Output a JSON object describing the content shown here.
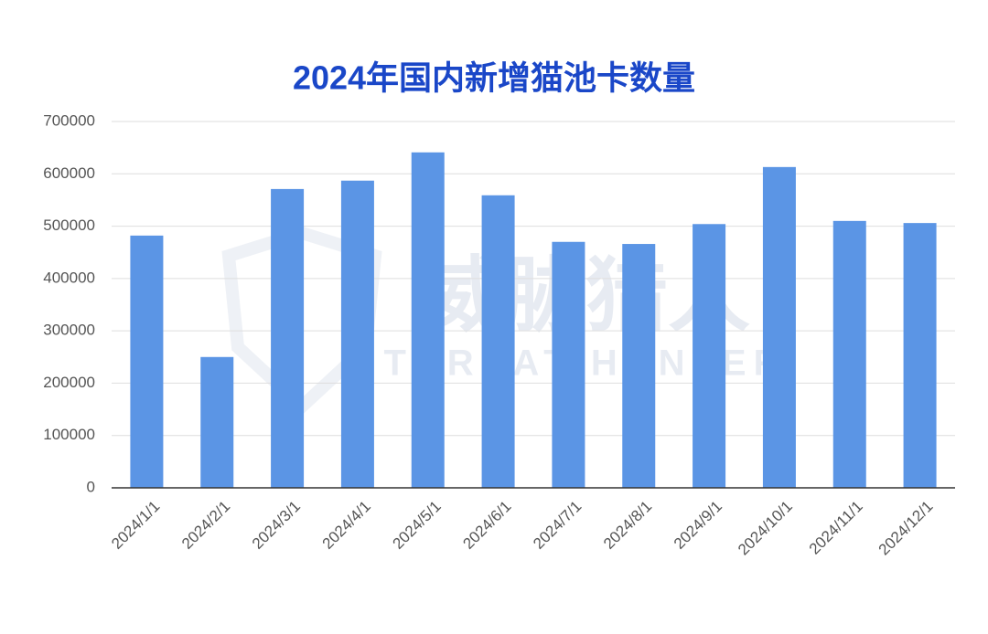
{
  "chart_data": {
    "type": "bar",
    "title": "2024年国内新增猫池卡数量",
    "categories": [
      "2024/1/1",
      "2024/2/1",
      "2024/3/1",
      "2024/4/1",
      "2024/5/1",
      "2024/6/1",
      "2024/7/1",
      "2024/8/1",
      "2024/9/1",
      "2024/10/1",
      "2024/11/1",
      "2024/12/1"
    ],
    "values": [
      482000,
      250000,
      571000,
      587000,
      641000,
      559000,
      470000,
      466000,
      504000,
      613000,
      510000,
      506000
    ],
    "color": "#5b95e5",
    "ylim": [
      0,
      700000
    ],
    "yticks": [
      0,
      100000,
      200000,
      300000,
      400000,
      500000,
      600000,
      700000
    ],
    "grid": true,
    "watermark": [
      "威胁猎人",
      "THREAT HUNTER"
    ]
  }
}
